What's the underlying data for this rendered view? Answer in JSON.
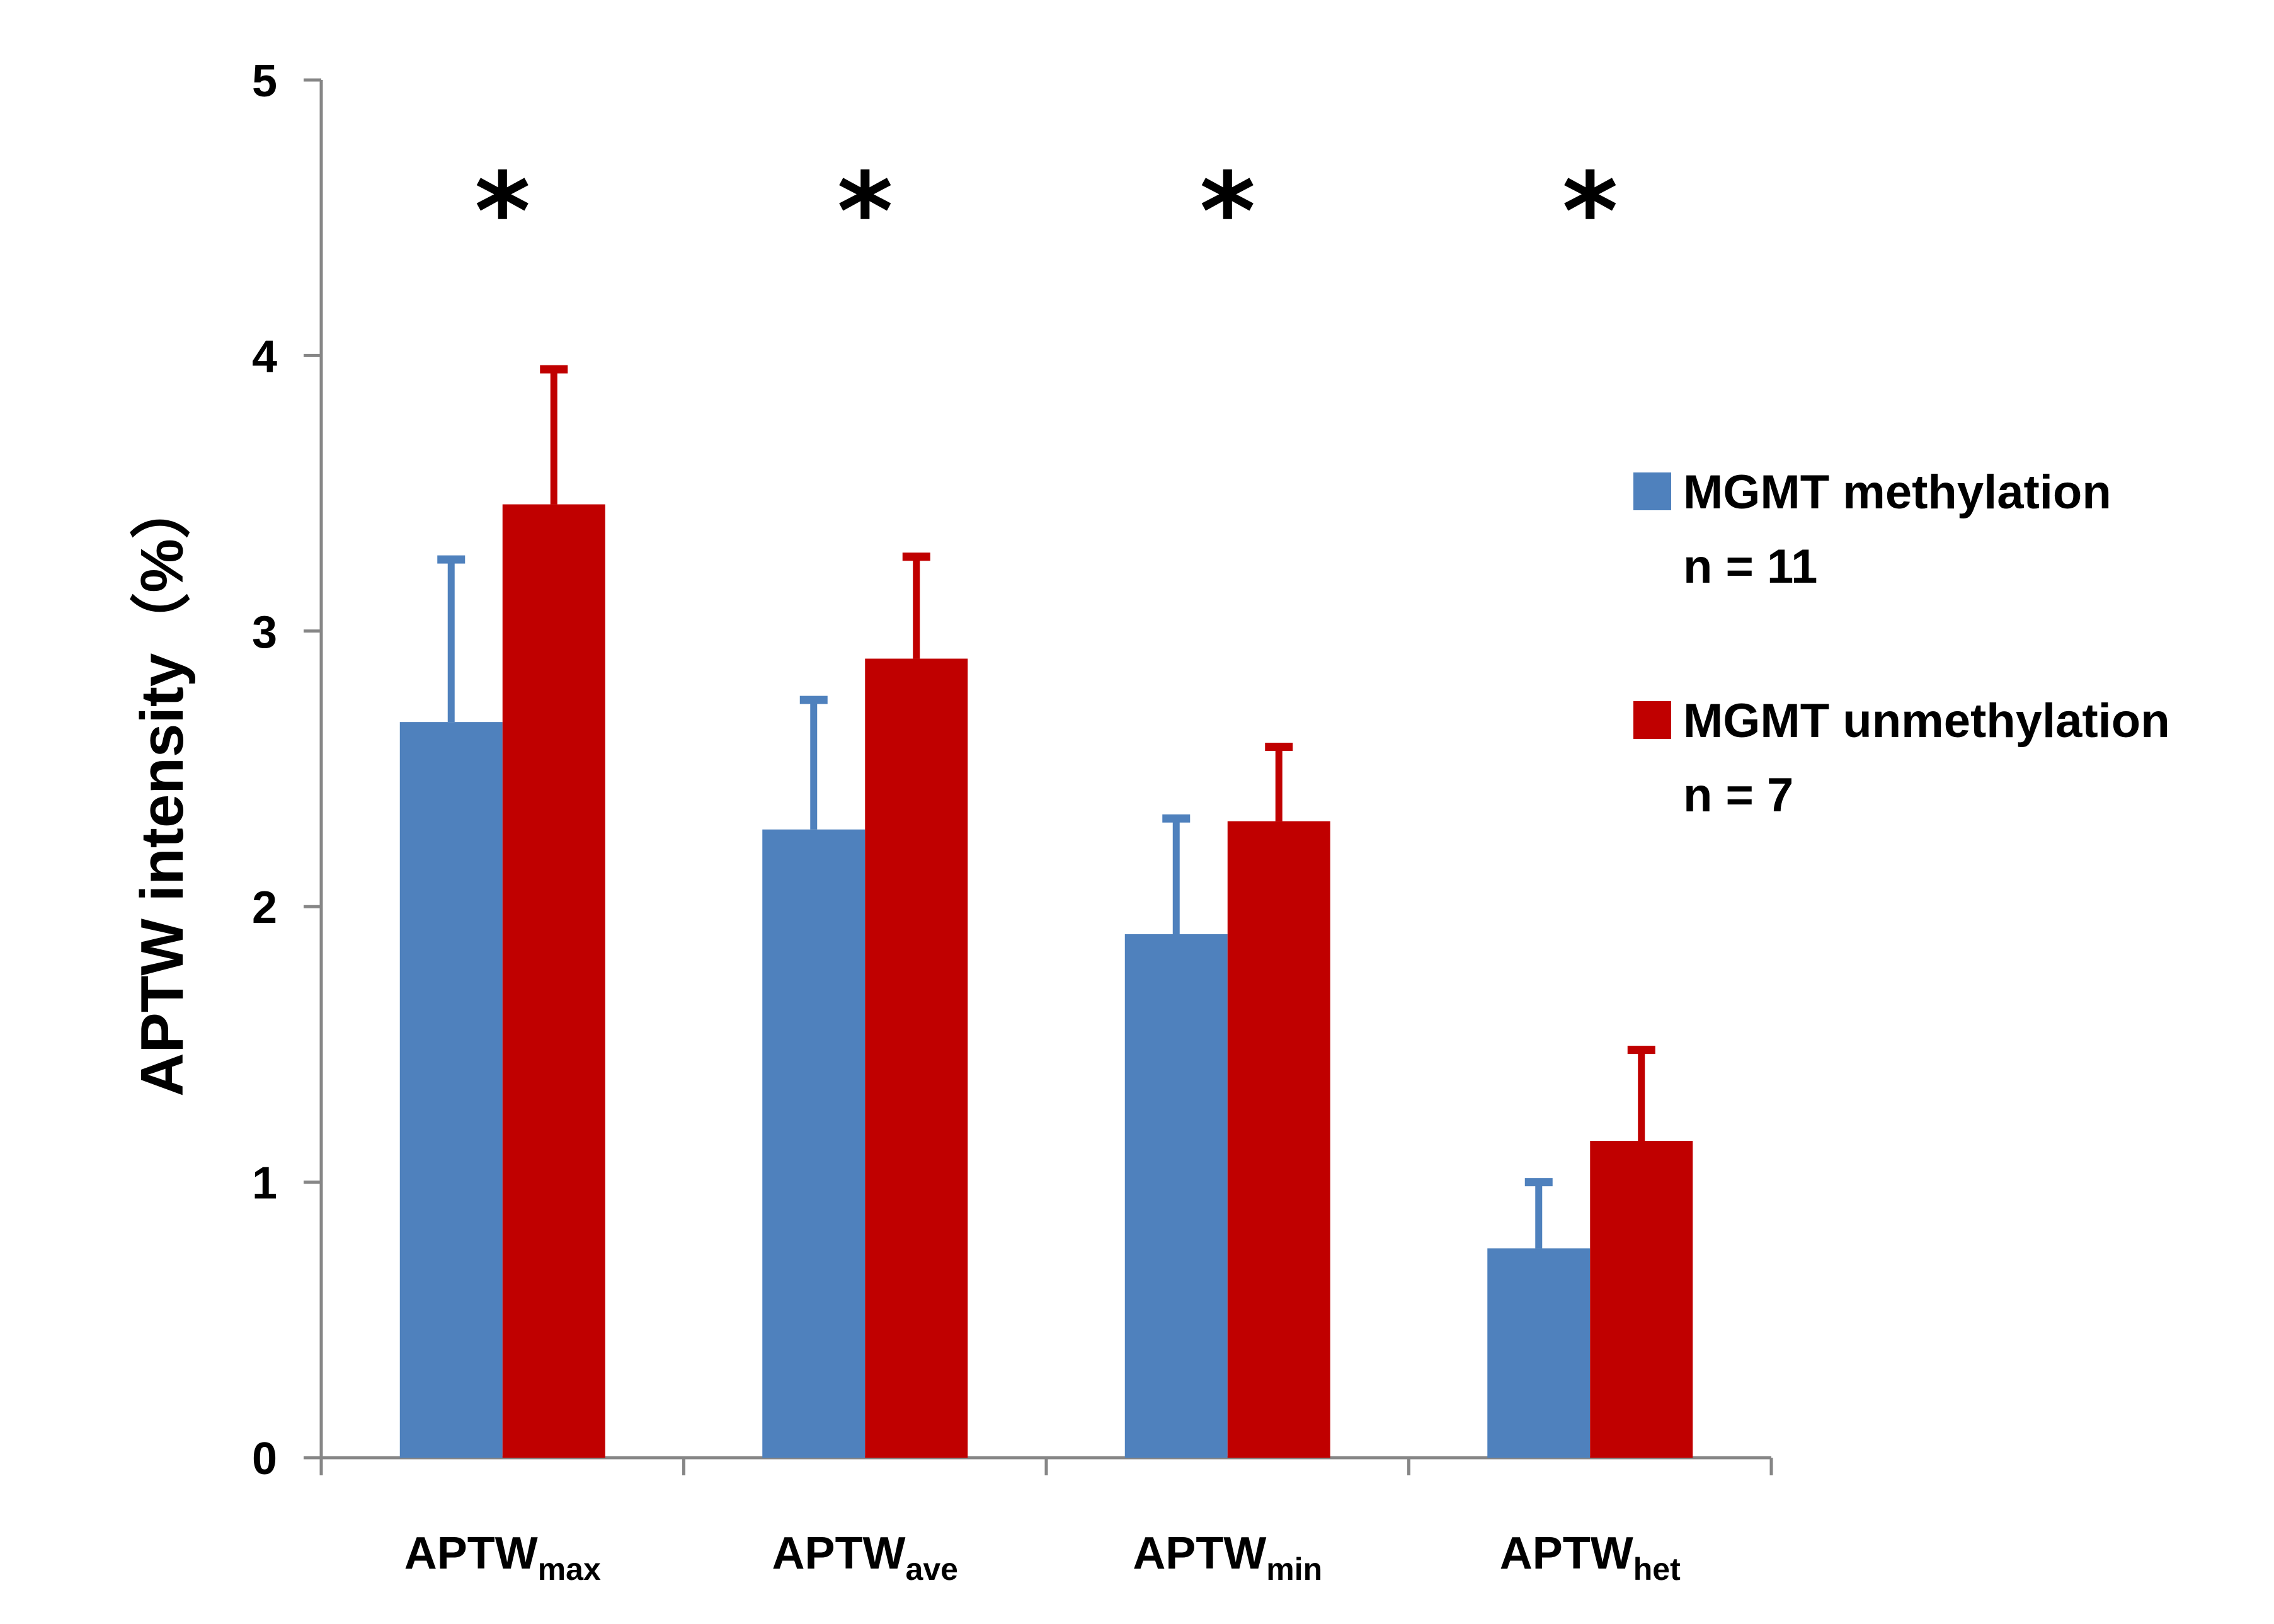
{
  "chart_data": {
    "type": "bar",
    "categories": [
      {
        "base": "APTW",
        "sub": "max"
      },
      {
        "base": "APTW",
        "sub": "ave"
      },
      {
        "base": "APTW",
        "sub": "min"
      },
      {
        "base": "APTW",
        "sub": "het"
      }
    ],
    "series": [
      {
        "name": "MGMT methylation",
        "n_label": "n = 11",
        "color": "#4f81bd",
        "values": [
          2.67,
          2.28,
          1.9,
          0.76
        ],
        "errors": [
          0.59,
          0.47,
          0.42,
          0.24
        ]
      },
      {
        "name": "MGMT unmethylation",
        "n_label": "n = 7",
        "color": "#c00000",
        "values": [
          3.46,
          2.9,
          2.31,
          1.15
        ],
        "errors": [
          0.49,
          0.37,
          0.27,
          0.33
        ]
      }
    ],
    "significance": [
      "*",
      "*",
      "*",
      "*"
    ],
    "ylabel": "APTW  intensity（%）",
    "xlabel": "",
    "ylim": [
      0,
      5
    ],
    "yticks": [
      "0",
      "1",
      "2",
      "3",
      "4",
      "5"
    ],
    "legend_position": "right",
    "grid": false
  }
}
